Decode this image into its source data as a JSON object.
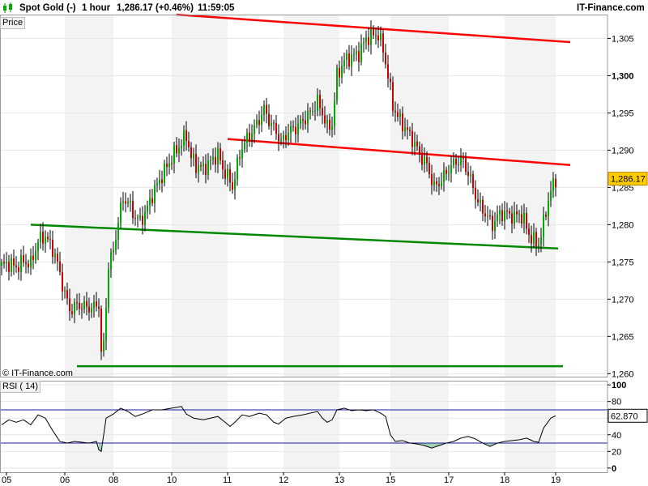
{
  "header": {
    "instrument": "Spot Gold (-)",
    "timeframe": "1 hour",
    "price_change": "1,286.17 (+0.46%)",
    "time": "11:59:05",
    "brand": "IT-Finance.com"
  },
  "price_pane": {
    "label": "Price",
    "watermark": "© IT-Finance.com"
  },
  "rsi_pane": {
    "label": "RSI ( 14)"
  },
  "colors": {
    "candle_up": "#00aa00",
    "candle_down": "#cc0000",
    "resistance_line": "#ff0000",
    "support_line": "#008800",
    "rsi_line": "#000000",
    "rsi_band": "#1a1aa0",
    "rsi_fill": "#9fd3b0",
    "last_price_tag": "#ffcc00"
  },
  "chart_data": [
    {
      "type": "candlestick",
      "title": "Spot Gold (-) 1 hour",
      "x_tick_labels": [
        "05",
        "06",
        "08",
        "10",
        "11",
        "12",
        "13",
        "15",
        "17",
        "18",
        "19"
      ],
      "y_ticks": [
        1260,
        1265,
        1270,
        1275,
        1280,
        1285,
        1290,
        1295,
        1300,
        1305
      ],
      "y_tick_labels": [
        "1,260",
        "1,265",
        "1,270",
        "1,275",
        "1,280",
        "1,285",
        "1,290",
        "1,295",
        "1,300",
        "1,305"
      ],
      "ylim": [
        1259.6,
        1308.2
      ],
      "grid": true,
      "last_price": 1286.17,
      "last_price_label": "1,286.17",
      "close_path": [
        [
          0,
          1274.5
        ],
        [
          3,
          1274.8
        ],
        [
          6,
          1274.3
        ],
        [
          9,
          1275.1
        ],
        [
          12,
          1274.7
        ],
        [
          15,
          1277.8
        ],
        [
          18,
          1278.5
        ],
        [
          22,
          1276.0
        ],
        [
          25,
          1272.0
        ],
        [
          28,
          1268.5
        ],
        [
          31,
          1269.2
        ],
        [
          34,
          1269.0
        ],
        [
          37,
          1268.8
        ],
        [
          40,
          1269.4
        ],
        [
          41,
          1262.5
        ],
        [
          42,
          1264.0
        ],
        [
          44,
          1274.5
        ],
        [
          46,
          1276.5
        ],
        [
          48,
          1280.5
        ],
        [
          50,
          1283.5
        ],
        [
          52,
          1283.0
        ],
        [
          55,
          1281.0
        ],
        [
          57,
          1280.5
        ],
        [
          59,
          1281.5
        ],
        [
          62,
          1284.0
        ],
        [
          65,
          1286.0
        ],
        [
          68,
          1287.8
        ],
        [
          71,
          1289.5
        ],
        [
          74,
          1291.0
        ],
        [
          76,
          1292.0
        ],
        [
          78,
          1289.0
        ],
        [
          80,
          1288.0
        ],
        [
          83,
          1287.5
        ],
        [
          86,
          1288.5
        ],
        [
          89,
          1289.5
        ],
        [
          91,
          1287.5
        ],
        [
          93,
          1286.5
        ],
        [
          95,
          1285.0
        ],
        [
          97,
          1288.0
        ],
        [
          99,
          1290.5
        ],
        [
          102,
          1292.0
        ],
        [
          105,
          1293.5
        ],
        [
          108,
          1295.5
        ],
        [
          110,
          1294.0
        ],
        [
          113,
          1292.5
        ],
        [
          115,
          1291.0
        ],
        [
          118,
          1292.5
        ],
        [
          121,
          1293.0
        ],
        [
          124,
          1294.0
        ],
        [
          127,
          1295.0
        ],
        [
          130,
          1296.5
        ],
        [
          132,
          1295.0
        ],
        [
          134,
          1293.0
        ],
        [
          136,
          1293.5
        ],
        [
          138,
          1300.0
        ],
        [
          141,
          1302.0
        ],
        [
          144,
          1302.5
        ],
        [
          147,
          1303.0
        ],
        [
          150,
          1305.0
        ],
        [
          153,
          1305.5
        ],
        [
          155,
          1305.5
        ],
        [
          157,
          1303.5
        ],
        [
          159,
          1300.0
        ],
        [
          161,
          1296.0
        ],
        [
          163,
          1294.5
        ],
        [
          166,
          1293.0
        ],
        [
          169,
          1291.5
        ],
        [
          172,
          1289.5
        ],
        [
          175,
          1288.0
        ],
        [
          178,
          1285.0
        ],
        [
          181,
          1286.0
        ],
        [
          184,
          1287.5
        ],
        [
          187,
          1288.5
        ],
        [
          190,
          1288.5
        ],
        [
          193,
          1286.0
        ],
        [
          196,
          1283.0
        ],
        [
          199,
          1281.5
        ],
        [
          202,
          1280.0
        ],
        [
          205,
          1281.5
        ],
        [
          208,
          1281.5
        ],
        [
          211,
          1281.0
        ],
        [
          213,
          1281.5
        ],
        [
          215,
          1280.5
        ],
        [
          218,
          1278.0
        ],
        [
          221,
          1277.5
        ],
        [
          222,
          1278.5
        ],
        [
          224,
          1282.0
        ],
        [
          226,
          1284.5
        ],
        [
          228,
          1286.17
        ]
      ],
      "trend_lines": [
        {
          "kind": "resistance",
          "x": [
            72,
            234
          ],
          "y": [
            1308.2,
            1304.5
          ]
        },
        {
          "kind": "resistance",
          "x": [
            93,
            234
          ],
          "y": [
            1291.5,
            1288.0
          ]
        },
        {
          "kind": "support",
          "x": [
            12,
            229
          ],
          "y": [
            1280.0,
            1276.8
          ]
        },
        {
          "kind": "support",
          "x": [
            31,
            231
          ],
          "y": [
            1261.0,
            1261.0
          ]
        }
      ]
    },
    {
      "type": "line",
      "title": "RSI ( 14)",
      "y_ticks": [
        0,
        20,
        40,
        60,
        80,
        100
      ],
      "y_tick_labels": [
        "0",
        "20",
        "40",
        "60",
        "80",
        "100"
      ],
      "ylim": [
        -5,
        105
      ],
      "bands": [
        30,
        70
      ],
      "last_value": 62.87,
      "last_value_label": "62.870",
      "values_path": [
        [
          0,
          52
        ],
        [
          3,
          58
        ],
        [
          6,
          55
        ],
        [
          9,
          58
        ],
        [
          12,
          52
        ],
        [
          15,
          64
        ],
        [
          18,
          60
        ],
        [
          21,
          45
        ],
        [
          24,
          32
        ],
        [
          27,
          30
        ],
        [
          30,
          32
        ],
        [
          33,
          31
        ],
        [
          36,
          30
        ],
        [
          39,
          32
        ],
        [
          40,
          22
        ],
        [
          41,
          20
        ],
        [
          43,
          60
        ],
        [
          46,
          65
        ],
        [
          49,
          72
        ],
        [
          52,
          68
        ],
        [
          55,
          62
        ],
        [
          58,
          65
        ],
        [
          62,
          70
        ],
        [
          66,
          70
        ],
        [
          70,
          72
        ],
        [
          74,
          74
        ],
        [
          76,
          65
        ],
        [
          79,
          60
        ],
        [
          83,
          58
        ],
        [
          86,
          60
        ],
        [
          89,
          62
        ],
        [
          92,
          55
        ],
        [
          94,
          50
        ],
        [
          96,
          55
        ],
        [
          99,
          64
        ],
        [
          102,
          62
        ],
        [
          106,
          66
        ],
        [
          109,
          64
        ],
        [
          112,
          55
        ],
        [
          114,
          53
        ],
        [
          117,
          60
        ],
        [
          120,
          62
        ],
        [
          124,
          64
        ],
        [
          127,
          66
        ],
        [
          130,
          68
        ],
        [
          132,
          60
        ],
        [
          134,
          55
        ],
        [
          136,
          58
        ],
        [
          138,
          70
        ],
        [
          141,
          72
        ],
        [
          144,
          69
        ],
        [
          147,
          70
        ],
        [
          150,
          69
        ],
        [
          153,
          70
        ],
        [
          156,
          66
        ],
        [
          158,
          62
        ],
        [
          160,
          40
        ],
        [
          162,
          32
        ],
        [
          165,
          33
        ],
        [
          168,
          30
        ],
        [
          171,
          29
        ],
        [
          174,
          27
        ],
        [
          177,
          24
        ],
        [
          180,
          27
        ],
        [
          183,
          30
        ],
        [
          186,
          32
        ],
        [
          189,
          36
        ],
        [
          192,
          38
        ],
        [
          195,
          35
        ],
        [
          198,
          30
        ],
        [
          201,
          26
        ],
        [
          204,
          30
        ],
        [
          207,
          32
        ],
        [
          210,
          33
        ],
        [
          213,
          34
        ],
        [
          216,
          36
        ],
        [
          219,
          32
        ],
        [
          221,
          31
        ],
        [
          223,
          48
        ],
        [
          226,
          60
        ],
        [
          228,
          62.87
        ]
      ]
    }
  ]
}
